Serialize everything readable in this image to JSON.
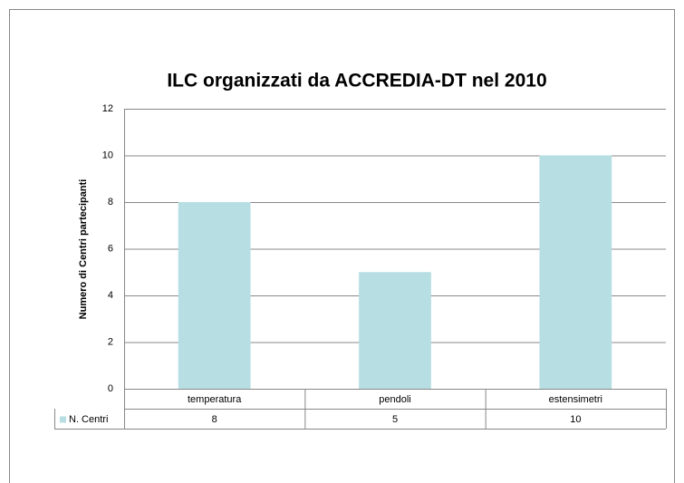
{
  "chart_data": {
    "type": "bar",
    "title": "ILC organizzati da ACCREDIA-DT nel 2010",
    "y_label": "Numero di Centri partecipanti",
    "categories": [
      "temperatura",
      "pendoli",
      "estensimetri"
    ],
    "series": [
      {
        "name": "N. Centri",
        "color": "#b7dfe3",
        "values": [
          8,
          5,
          10
        ]
      }
    ],
    "ylim": [
      0,
      12
    ],
    "yticks": [
      0,
      2,
      4,
      6,
      8,
      10,
      12
    ],
    "grid": true,
    "data_table": true
  }
}
